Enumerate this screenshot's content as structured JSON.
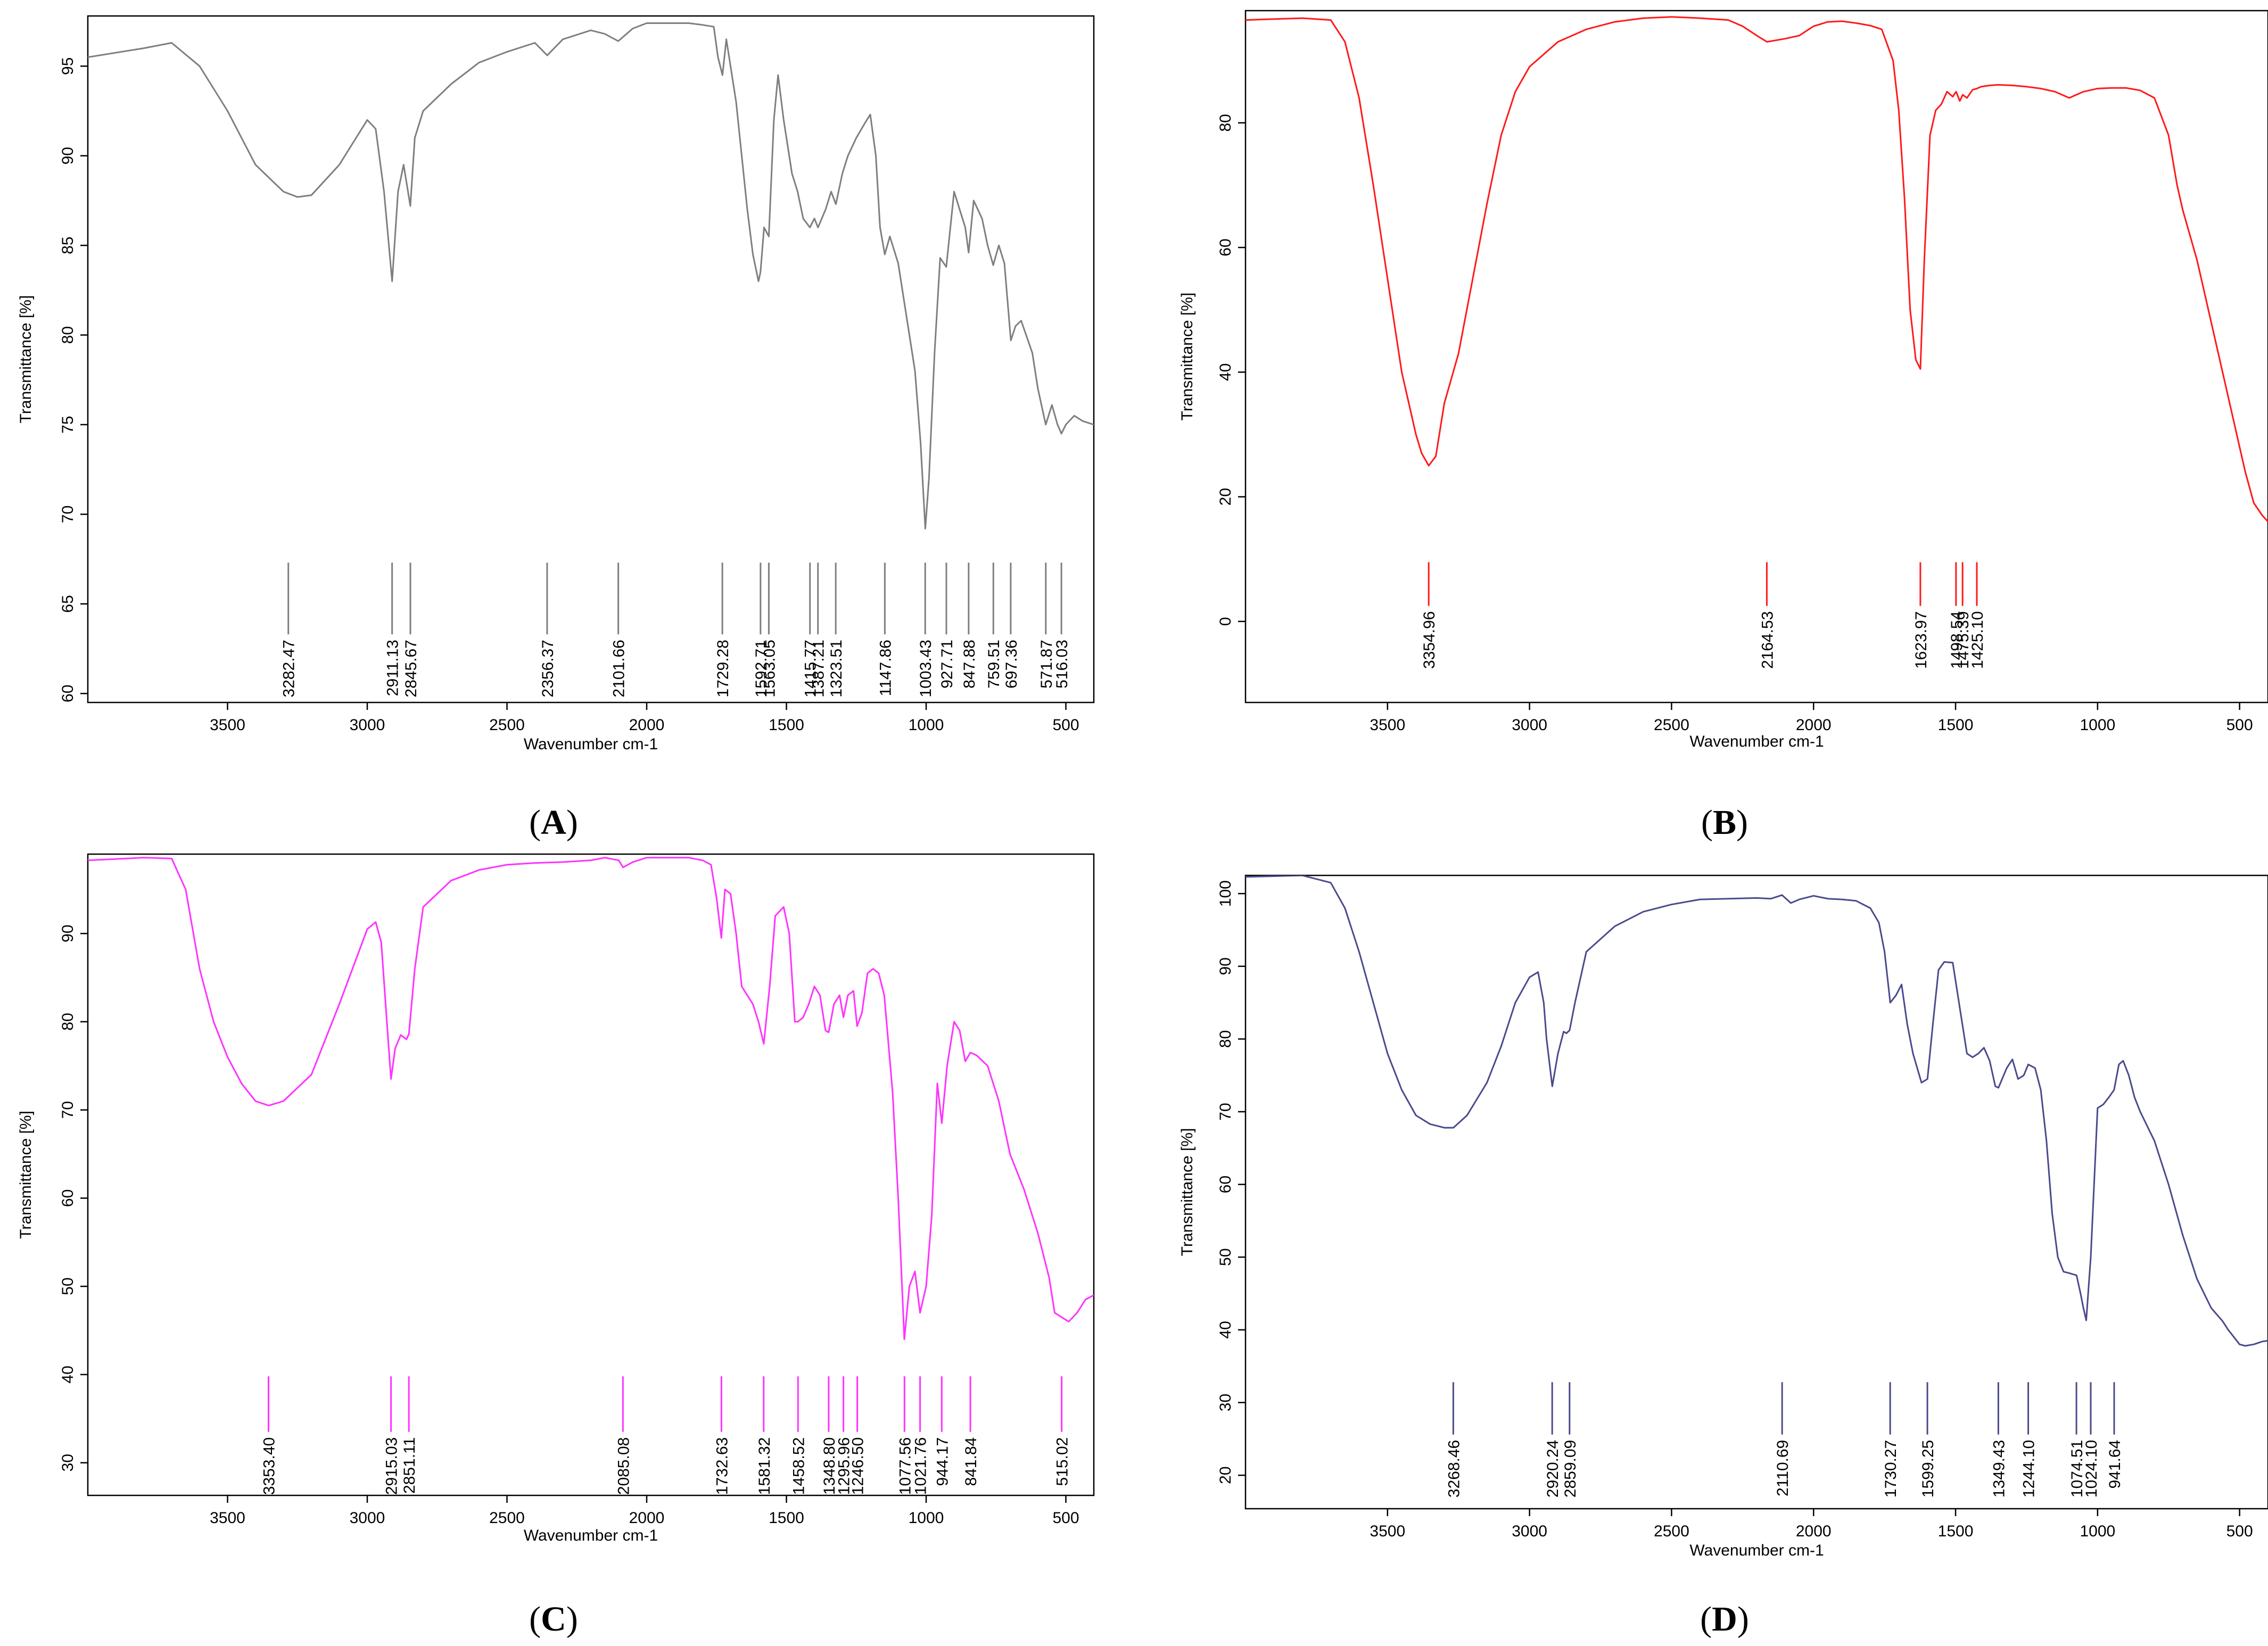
{
  "colors": {
    "A": "#7f7f7f",
    "B": "#ff1a1a",
    "C": "#ff33ff",
    "D": "#4a4a8c"
  },
  "chart_data": [
    {
      "panel": "A",
      "type": "line",
      "panel_label": "A",
      "xlabel": "Wavenumber cm-1",
      "ylabel": "Transmittance [%]",
      "xlim": [
        4000,
        400
      ],
      "ylim": [
        59.5,
        97.8
      ],
      "xticks": [
        3500,
        3000,
        2500,
        2000,
        1500,
        1000,
        500
      ],
      "yticks": [
        60,
        65,
        70,
        75,
        80,
        85,
        90,
        95
      ],
      "peak_marker_range": [
        63.3,
        67.3
      ],
      "peaks": [
        "3282.47",
        "2911.13",
        "2845.67",
        "2356.37",
        "2101.66",
        "1729.28",
        "1592.71",
        "1563.05",
        "1415.77",
        "1387.21",
        "1323.51",
        "1147.86",
        "1003.43",
        "927.71",
        "847.88",
        "759.51",
        "697.36",
        "571.87",
        "516.03"
      ],
      "series": [
        {
          "x": [
            4000,
            3800,
            3700,
            3600,
            3500,
            3400,
            3300,
            3250,
            3200,
            3100,
            3000,
            2970,
            2940,
            2911,
            2890,
            2870,
            2846,
            2830,
            2800,
            2700,
            2600,
            2500,
            2400,
            2356,
            2300,
            2200,
            2150,
            2102,
            2050,
            2000,
            1950,
            1900,
            1850,
            1800,
            1760,
            1745,
            1729,
            1715,
            1700,
            1680,
            1660,
            1640,
            1620,
            1600,
            1593,
            1580,
            1563,
            1545,
            1530,
            1510,
            1480,
            1460,
            1440,
            1416,
            1400,
            1387,
            1360,
            1340,
            1323,
            1300,
            1280,
            1250,
            1220,
            1200,
            1180,
            1165,
            1148,
            1130,
            1100,
            1080,
            1060,
            1040,
            1020,
            1003,
            990,
            970,
            950,
            928,
            900,
            880,
            860,
            848,
            830,
            800,
            780,
            760,
            740,
            720,
            697,
            680,
            660,
            620,
            600,
            572,
            550,
            530,
            516,
            500,
            470,
            440,
            400
          ],
          "y": [
            95.5,
            96,
            96.3,
            95,
            92.5,
            89.5,
            88,
            87.7,
            87.8,
            89.5,
            92,
            91.5,
            88,
            83,
            88,
            89.5,
            87.2,
            91,
            92.5,
            94,
            95.2,
            95.8,
            96.3,
            95.6,
            96.5,
            97,
            96.8,
            96.4,
            97.1,
            97.4,
            97.4,
            97.4,
            97.4,
            97.3,
            97.2,
            95.5,
            94.5,
            96.5,
            95,
            93,
            90,
            87,
            84.5,
            83,
            83.5,
            86,
            85.5,
            92,
            94.5,
            92,
            89,
            88,
            86.5,
            86,
            86.5,
            86,
            87,
            88,
            87.3,
            89,
            90,
            91,
            91.8,
            92.3,
            90,
            86,
            84.5,
            85.5,
            84,
            82,
            80,
            78,
            74,
            69.2,
            72,
            79,
            84.3,
            83.8,
            88,
            87,
            86,
            84.6,
            87.5,
            86.5,
            85,
            83.9,
            85,
            84,
            79.7,
            80.5,
            80.8,
            79,
            77,
            75,
            76.1,
            75,
            74.5,
            75,
            75.5,
            75.2,
            75
          ]
        }
      ]
    },
    {
      "panel": "B",
      "type": "line",
      "panel_label": "B",
      "xlabel": "Wavenumber cm-1",
      "ylabel": "Transmittance [%]",
      "xlim": [
        4000,
        400
      ],
      "ylim": [
        -13,
        98
      ],
      "xticks": [
        3500,
        3000,
        2500,
        2000,
        1500,
        1000,
        500
      ],
      "yticks": [
        0,
        20,
        40,
        60,
        80
      ],
      "peak_marker_range": [
        2.5,
        9.5
      ],
      "peaks": [
        "3354.96",
        "2164.53",
        "1623.97",
        "1498.54",
        "1475.39",
        "1425.10"
      ],
      "series": [
        {
          "x": [
            4000,
            3800,
            3700,
            3650,
            3600,
            3550,
            3500,
            3450,
            3400,
            3380,
            3355,
            3330,
            3300,
            3250,
            3200,
            3150,
            3100,
            3050,
            3000,
            2900,
            2800,
            2700,
            2600,
            2500,
            2400,
            2300,
            2250,
            2200,
            2164,
            2100,
            2050,
            2000,
            1950,
            1900,
            1850,
            1800,
            1760,
            1720,
            1700,
            1680,
            1660,
            1640,
            1624,
            1610,
            1590,
            1570,
            1550,
            1530,
            1510,
            1498,
            1485,
            1475,
            1460,
            1440,
            1425,
            1410,
            1380,
            1350,
            1300,
            1250,
            1200,
            1150,
            1100,
            1050,
            1000,
            950,
            900,
            850,
            800,
            750,
            720,
            700,
            650,
            600,
            550,
            500,
            480,
            450,
            420,
            400
          ],
          "y": [
            96.5,
            96.8,
            96.5,
            93,
            84,
            70,
            55,
            40,
            30,
            27,
            25,
            26.5,
            35,
            43,
            55,
            67,
            78,
            85,
            89,
            93,
            95,
            96.2,
            96.8,
            97,
            96.8,
            96.5,
            95.5,
            94,
            93,
            93.5,
            94,
            95.5,
            96.2,
            96.3,
            96,
            95.6,
            95,
            90,
            82,
            68,
            50,
            42,
            40.5,
            58,
            78,
            82,
            83,
            85,
            84.2,
            85,
            83.5,
            84.5,
            84,
            85.3,
            85.5,
            85.8,
            86,
            86.1,
            86,
            85.8,
            85.5,
            85,
            84,
            85,
            85.5,
            85.6,
            85.6,
            85.2,
            84,
            78,
            70,
            66,
            58,
            48,
            38,
            28,
            24,
            19,
            17,
            16
          ]
        }
      ]
    },
    {
      "panel": "C",
      "type": "line",
      "panel_label": "C",
      "xlabel": "Wavenumber cm-1",
      "ylabel": "Transmittance [%]",
      "xlim": [
        4000,
        400
      ],
      "ylim": [
        26.3,
        99
      ],
      "xticks": [
        3500,
        3000,
        2500,
        2000,
        1500,
        1000,
        500
      ],
      "yticks": [
        30,
        40,
        50,
        60,
        70,
        80,
        90
      ],
      "peak_marker_range": [
        33.5,
        39.8
      ],
      "peaks": [
        "3353.40",
        "2915.03",
        "2851.11",
        "2085.08",
        "1732.63",
        "1581.32",
        "1458.52",
        "1348.80",
        "1295.96",
        "1246.50",
        "1077.56",
        "1021.76",
        "944.17",
        "841.84",
        "515.02"
      ],
      "series": [
        {
          "x": [
            4000,
            3800,
            3700,
            3650,
            3600,
            3550,
            3500,
            3450,
            3400,
            3353,
            3300,
            3250,
            3200,
            3100,
            3000,
            2970,
            2950,
            2930,
            2915,
            2900,
            2880,
            2860,
            2851,
            2830,
            2800,
            2700,
            2600,
            2500,
            2400,
            2300,
            2200,
            2150,
            2100,
            2085,
            2050,
            2000,
            1950,
            1900,
            1850,
            1800,
            1770,
            1750,
            1733,
            1720,
            1700,
            1680,
            1660,
            1640,
            1620,
            1600,
            1581,
            1560,
            1540,
            1510,
            1490,
            1470,
            1459,
            1440,
            1420,
            1400,
            1380,
            1360,
            1349,
            1330,
            1310,
            1296,
            1280,
            1260,
            1247,
            1230,
            1210,
            1190,
            1170,
            1150,
            1120,
            1100,
            1078,
            1060,
            1040,
            1022,
            1000,
            980,
            960,
            944,
            925,
            900,
            880,
            860,
            842,
            820,
            780,
            740,
            700,
            650,
            600,
            560,
            540,
            515,
            490,
            460,
            430,
            400
          ],
          "y": [
            98.3,
            98.6,
            98.5,
            95,
            86,
            80,
            76,
            73,
            71,
            70.5,
            71,
            72.5,
            74,
            82,
            90.5,
            91.3,
            89,
            80,
            73.5,
            77,
            78.5,
            78,
            78.6,
            86,
            93,
            96,
            97.2,
            97.8,
            98,
            98.1,
            98.3,
            98.6,
            98.3,
            97.5,
            98.1,
            98.6,
            98.6,
            98.6,
            98.6,
            98.3,
            97.8,
            94,
            89.5,
            95,
            94.5,
            90,
            84,
            83,
            82,
            80,
            77.5,
            84,
            92,
            93,
            90,
            80,
            80,
            80.5,
            82,
            84,
            83,
            79,
            78.8,
            82,
            83,
            80.5,
            83,
            83.5,
            79.5,
            81,
            85.5,
            86,
            85.5,
            83,
            72,
            60,
            44,
            50,
            51.7,
            47,
            50,
            58,
            73,
            68.5,
            75,
            80,
            79,
            75.5,
            76.5,
            76.2,
            75,
            71,
            65,
            61,
            56,
            51,
            47,
            46.5,
            46,
            47,
            48.5,
            49
          ]
        }
      ]
    },
    {
      "panel": "D",
      "type": "line",
      "panel_label": "D",
      "xlabel": "Wavenumber cm-1",
      "ylabel": "Transmittance [%]",
      "xlim": [
        4000,
        400
      ],
      "ylim": [
        15.4,
        102.5
      ],
      "xticks": [
        3500,
        3000,
        2500,
        2000,
        1500,
        1000,
        500
      ],
      "yticks": [
        20,
        30,
        40,
        50,
        60,
        70,
        80,
        90,
        100
      ],
      "peak_marker_range": [
        25.6,
        32.8
      ],
      "peaks": [
        "3268.46",
        "2920.24",
        "2859.09",
        "2110.69",
        "1730.27",
        "1599.25",
        "1349.43",
        "1244.10",
        "1074.51",
        "1024.10",
        "941.64"
      ],
      "series": [
        {
          "x": [
            4000,
            3800,
            3750,
            3700,
            3650,
            3600,
            3550,
            3500,
            3450,
            3400,
            3350,
            3300,
            3268,
            3220,
            3150,
            3100,
            3050,
            3000,
            2970,
            2950,
            2940,
            2920,
            2900,
            2880,
            2870,
            2859,
            2840,
            2800,
            2700,
            2600,
            2500,
            2400,
            2300,
            2200,
            2150,
            2111,
            2080,
            2050,
            2000,
            1950,
            1900,
            1850,
            1800,
            1770,
            1750,
            1730,
            1710,
            1690,
            1670,
            1650,
            1620,
            1599,
            1580,
            1560,
            1540,
            1510,
            1480,
            1460,
            1440,
            1420,
            1400,
            1380,
            1360,
            1349,
            1320,
            1300,
            1280,
            1260,
            1244,
            1220,
            1200,
            1180,
            1160,
            1140,
            1120,
            1100,
            1074,
            1060,
            1050,
            1040,
            1024,
            1010,
            1000,
            980,
            960,
            942,
            925,
            910,
            890,
            870,
            850,
            800,
            750,
            700,
            650,
            600,
            560,
            540,
            520,
            500,
            480,
            450,
            420,
            400
          ],
          "y": [
            102.3,
            102.5,
            102,
            101.5,
            98,
            92,
            85,
            78,
            73,
            69.5,
            68.3,
            67.8,
            67.8,
            69.5,
            74,
            79,
            85,
            88.5,
            89.2,
            85,
            80,
            73.5,
            78,
            81,
            80.8,
            81.2,
            85,
            92,
            95.5,
            97.5,
            98.5,
            99.2,
            99.3,
            99.4,
            99.3,
            99.8,
            98.7,
            99.2,
            99.7,
            99.3,
            99.2,
            99,
            98,
            96,
            92,
            85,
            86,
            87.5,
            82,
            78,
            74,
            74.5,
            82,
            89.5,
            90.6,
            90.5,
            83,
            78,
            77.5,
            78,
            78.8,
            77,
            73.5,
            73.3,
            76,
            77.2,
            74.5,
            75,
            76.5,
            76,
            73,
            66,
            56,
            50,
            48,
            47.8,
            47.5,
            45,
            43,
            41.3,
            50,
            62,
            70.5,
            71,
            72,
            73,
            76.5,
            77,
            75,
            72,
            70,
            66,
            60,
            53,
            47,
            43,
            41.2,
            40,
            39,
            38,
            37.8,
            38,
            38.4,
            38.5
          ]
        }
      ]
    }
  ]
}
